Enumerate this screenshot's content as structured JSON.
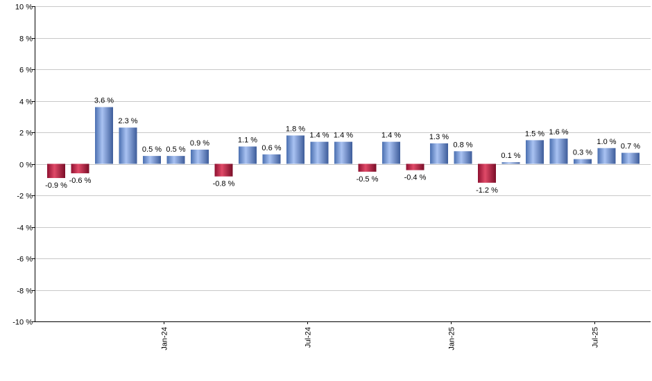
{
  "chart_data": {
    "type": "bar",
    "title": "",
    "xlabel": "",
    "ylabel": "",
    "ylim": [
      -10,
      10
    ],
    "y_ticks": [
      {
        "value": 10,
        "label": "10 %"
      },
      {
        "value": 8,
        "label": "8 %"
      },
      {
        "value": 6,
        "label": "6 %"
      },
      {
        "value": 4,
        "label": "4 %"
      },
      {
        "value": 2,
        "label": "2 %"
      },
      {
        "value": 0,
        "label": "0 %"
      },
      {
        "value": -2,
        "label": "-2 %"
      },
      {
        "value": -4,
        "label": "-4 %"
      },
      {
        "value": -6,
        "label": "-6 %"
      },
      {
        "value": -8,
        "label": "-8 %"
      },
      {
        "value": -10,
        "label": "-10 %"
      }
    ],
    "grid": true,
    "legend": "none",
    "x_tick_labels": [
      {
        "index": 4.5,
        "label": "Jan-24"
      },
      {
        "index": 10.5,
        "label": "Jul-24"
      },
      {
        "index": 16.5,
        "label": "Jan-25"
      },
      {
        "index": 22.5,
        "label": "Jul-25"
      }
    ],
    "values": [
      -0.9,
      -0.6,
      3.6,
      2.3,
      0.5,
      0.5,
      0.9,
      -0.8,
      1.1,
      0.6,
      1.8,
      1.4,
      1.4,
      -0.5,
      1.4,
      -0.4,
      1.3,
      0.8,
      -1.2,
      0.1,
      1.5,
      1.6,
      0.3,
      1.0,
      0.7
    ],
    "data_labels": [
      "-0.9 %",
      "-0.6 %",
      "3.6 %",
      "2.3 %",
      "0.5 %",
      "0.5 %",
      "0.9 %",
      "-0.8 %",
      "1.1 %",
      "0.6 %",
      "1.8 %",
      "1.4 %",
      "1.4 %",
      "-0.5 %",
      "1.4 %",
      "-0.4 %",
      "1.3 %",
      "0.8 %",
      "-1.2 %",
      "0.1 %",
      "1.5 %",
      "1.6 %",
      "0.3 %",
      "1.0 %",
      "0.7 %"
    ],
    "colors": {
      "positive_dark": "#4a6fb0",
      "positive_light": "#a9c2f2",
      "negative_dark": "#8e1030",
      "negative_light": "#e04a68",
      "grid": "#c8c8c8",
      "axis": "#000000"
    }
  }
}
